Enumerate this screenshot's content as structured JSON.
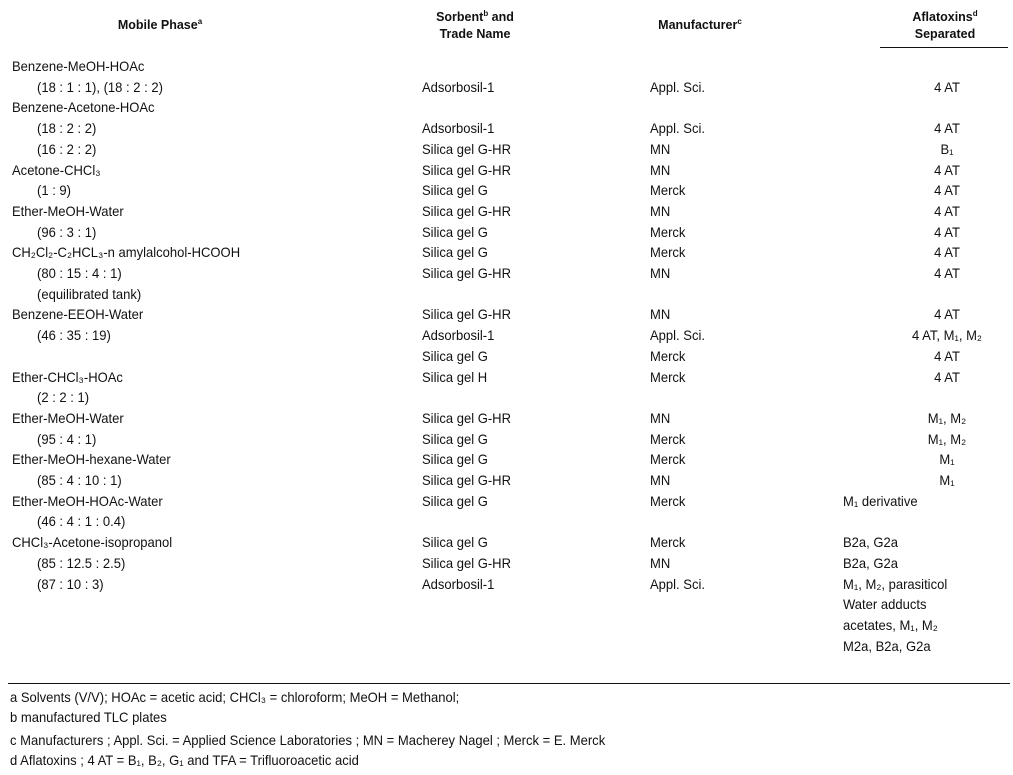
{
  "headers": {
    "mobile_phase": "Mobile Phase",
    "mobile_phase_note": "a",
    "sorbent_line1": "Sorbent",
    "sorbent_note": "b",
    "sorbent_line1b": " and",
    "sorbent_line2": "Trade Name",
    "manufacturer": "Manufacturer",
    "manufacturer_note": "c",
    "aflatoxins_line1": "Aflatoxins",
    "aflatoxins_note": "d",
    "aflatoxins_line2": "Separated"
  },
  "rows": [
    {
      "mobile": "Benzene-MeOH-HOAc",
      "indent": false
    },
    {
      "mobile": "(18 : 1 : 1), (18 : 2 : 2)",
      "indent": true,
      "sorbent": "Adsorbosil-1",
      "manufacturer": "Appl. Sci.",
      "aflatoxins": "4 AT"
    },
    {
      "mobile": "Benzene-Acetone-HOAc",
      "indent": false
    },
    {
      "mobile": "(18 : 2 : 2)",
      "indent": true,
      "sorbent": "Adsorbosil-1",
      "manufacturer": "Appl. Sci.",
      "aflatoxins": "4 AT"
    },
    {
      "mobile": "(16 : 2 : 2)",
      "indent": true,
      "sorbent": "Silica gel G-HR",
      "manufacturer": "MN",
      "aflatoxins": "B₁"
    },
    {
      "mobile": "Acetone-CHCl₃",
      "indent": false,
      "sorbent": "Silica gel G-HR",
      "manufacturer": "MN",
      "aflatoxins": "4 AT"
    },
    {
      "mobile": "(1 : 9)",
      "indent": true,
      "sorbent": "Silica gel G",
      "manufacturer": "Merck",
      "aflatoxins": "4 AT"
    },
    {
      "mobile": "Ether-MeOH-Water",
      "indent": false,
      "sorbent": "Silica gel G-HR",
      "manufacturer": "MN",
      "aflatoxins": "4 AT"
    },
    {
      "mobile": "(96 : 3 : 1)",
      "indent": true,
      "sorbent": "Silica gel G",
      "manufacturer": "Merck",
      "aflatoxins": "4 AT"
    },
    {
      "mobile": "CH₂Cl₂-C₂HCL₃-n amylalcohol-HCOOH",
      "indent": false,
      "sorbent": "Silica gel G",
      "manufacturer": "Merck",
      "aflatoxins": "4 AT"
    },
    {
      "mobile": "(80 : 15 : 4 : 1)",
      "indent": true,
      "sorbent": "Silica gel G-HR",
      "manufacturer": "MN",
      "aflatoxins": "4 AT"
    },
    {
      "mobile": "(equilibrated tank)",
      "indent": true
    },
    {
      "mobile": "Benzene-EEOH-Water",
      "indent": false,
      "sorbent": "Silica gel G-HR",
      "manufacturer": "MN",
      "aflatoxins": "4 AT"
    },
    {
      "mobile": "(46 : 35 : 19)",
      "indent": true,
      "sorbent": "Adsorbosil-1",
      "manufacturer": "Appl. Sci.",
      "aflatoxins": "4 AT, M₁, M₂"
    },
    {
      "sorbent": "Silica gel G",
      "manufacturer": "Merck",
      "aflatoxins": "4 AT"
    },
    {
      "mobile": "Ether-CHCl₃-HOAc",
      "indent": false,
      "sorbent": "Silica gel H",
      "manufacturer": "Merck",
      "aflatoxins": "4 AT"
    },
    {
      "mobile": "(2 : 2 : 1)",
      "indent": true
    },
    {
      "mobile": "Ether-MeOH-Water",
      "indent": false,
      "sorbent": "Silica gel G-HR",
      "manufacturer": "MN",
      "aflatoxins": "M₁, M₂"
    },
    {
      "mobile": "(95 : 4 : 1)",
      "indent": true,
      "sorbent": "Silica gel G",
      "manufacturer": "Merck",
      "aflatoxins": "M₁, M₂"
    },
    {
      "mobile": "Ether-MeOH-hexane-Water",
      "indent": false,
      "sorbent": "Silica gel G",
      "manufacturer": "Merck",
      "aflatoxins": "M₁"
    },
    {
      "mobile": "(85 : 4 : 10 : 1)",
      "indent": true,
      "sorbent": "Silica gel G-HR",
      "manufacturer": "MN",
      "aflatoxins": "M₁"
    },
    {
      "mobile": "Ether-MeOH-HOAc-Water",
      "indent": false,
      "sorbent": "Silica gel G",
      "manufacturer": "Merck",
      "aflatoxins": "M₁ derivative",
      "left": true
    },
    {
      "mobile": "(46 : 4 : 1 : 0.4)",
      "indent": true
    },
    {
      "mobile": "CHCl₃-Acetone-isopropanol",
      "indent": false,
      "sorbent": "Silica gel G",
      "manufacturer": "Merck",
      "aflatoxins": "B2a, G2a",
      "left": true
    },
    {
      "mobile": "(85 : 12.5 : 2.5)",
      "indent": true,
      "sorbent": "Silica gel G-HR",
      "manufacturer": "MN",
      "aflatoxins": "B2a, G2a",
      "left": true
    },
    {
      "mobile": "(87 : 10 : 3)",
      "indent": true,
      "sorbent": "Adsorbosil-1",
      "manufacturer": "Appl. Sci.",
      "aflatoxins": "M₁, M₂, parasiticol",
      "left": true
    },
    {
      "aflatoxins": "Water adducts",
      "left": true
    },
    {
      "aflatoxins": "acetates, M₁, M₂",
      "left": true
    },
    {
      "aflatoxins": "M2a, B2a, G2a",
      "left": true
    }
  ],
  "footnotes": [
    "a  Solvents (V/V); HOAc = acetic acid; CHCl₃ = chloroform; MeOH = Methanol;",
    "b  manufactured TLC plates",
    "c  Manufacturers ; Appl. Sci. = Applied Science Laboratories ; MN = Macherey Nagel ; Merck = E. Merck",
    "d  Aflatoxins ; 4 AT = B₁, B₂, G₁ and TFA = Trifluoroacetic acid"
  ]
}
